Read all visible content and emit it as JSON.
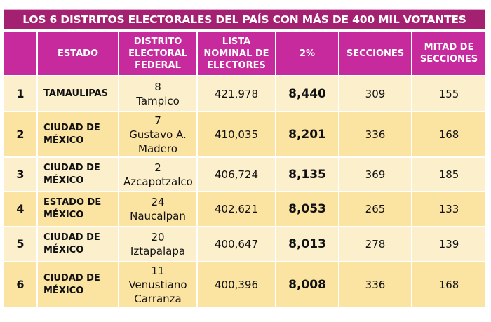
{
  "title": "LOS 6 DISTRITOS ELECTORALES DEL PAÍS CON MÁS DE 400 MIL VOTANTES",
  "colors": {
    "title_bg": "#a32170",
    "header_bg": "#c62a9c",
    "row_light": "#fcf0cc",
    "row_dark": "#fbe3a2"
  },
  "headers": [
    "",
    "ESTADO",
    "DISTRITO ELECTORAL FEDERAL",
    "LISTA NOMINAL DE ELECTORES",
    "2%",
    "SECCIONES",
    "MITAD DE SECCIONES"
  ],
  "rows": [
    {
      "n": "1",
      "estado": "TAMAULIPAS",
      "distrito": "8",
      "nombre": "Tampico",
      "lista": "421,978",
      "pct": "8,440",
      "secciones": "309",
      "mitad": "155"
    },
    {
      "n": "2",
      "estado": "CIUDAD DE MÉXICO",
      "distrito": "7",
      "nombre": "Gustavo A. Madero",
      "lista": "410,035",
      "pct": "8,201",
      "secciones": "336",
      "mitad": "168"
    },
    {
      "n": "3",
      "estado": "CIUDAD DE MÉXICO",
      "distrito": "2",
      "nombre": "Azcapotzalco",
      "lista": "406,724",
      "pct": "8,135",
      "secciones": "369",
      "mitad": "185"
    },
    {
      "n": "4",
      "estado": "ESTADO DE MÉXICO",
      "distrito": "24",
      "nombre": "Naucalpan",
      "lista": "402,621",
      "pct": "8,053",
      "secciones": "265",
      "mitad": "133"
    },
    {
      "n": "5",
      "estado": "CIUDAD DE MÉXICO",
      "distrito": "20",
      "nombre": "Iztapalapa",
      "lista": "400,647",
      "pct": "8,013",
      "secciones": "278",
      "mitad": "139"
    },
    {
      "n": "6",
      "estado": "CIUDAD DE MÉXICO",
      "distrito": "11",
      "nombre": "Venustiano Carranza",
      "lista": "400,396",
      "pct": "8,008",
      "secciones": "336",
      "mitad": "168"
    }
  ]
}
